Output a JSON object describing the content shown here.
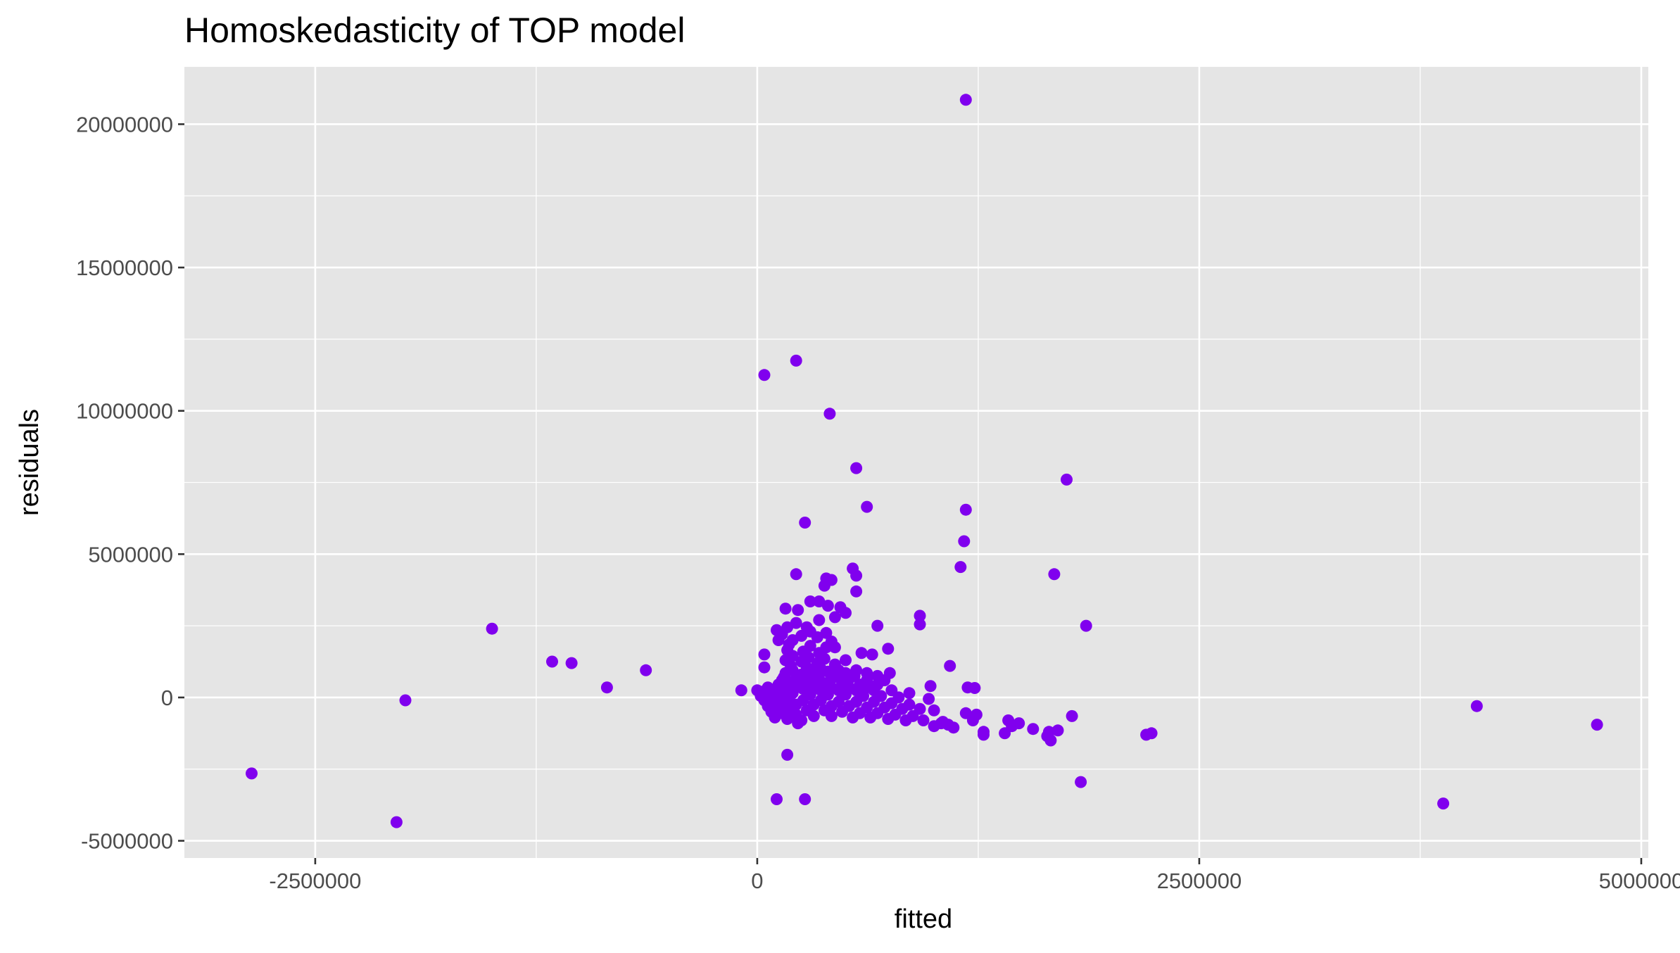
{
  "chart_data": {
    "type": "scatter",
    "title": "Homoskedasticity of TOP model",
    "xlabel": "fitted",
    "ylabel": "residuals",
    "xlim": [
      -3240000,
      5040000
    ],
    "ylim": [
      -5600000,
      22000000
    ],
    "x_ticks": [
      -2500000,
      0,
      2500000,
      5000000
    ],
    "x_tick_labels": [
      "-2500000",
      "0",
      "2500000",
      "5000000"
    ],
    "y_ticks": [
      -5000000,
      0,
      5000000,
      10000000,
      15000000,
      20000000
    ],
    "y_tick_labels": [
      "-5000000",
      "0",
      "5000000",
      "10000000",
      "15000000",
      "20000000"
    ],
    "grid": true,
    "legend": "none",
    "point_color": "#8000EE",
    "panel_background": "#E5E5E5",
    "series": [
      {
        "points": [
          [
            1180000,
            20850000
          ],
          [
            40000,
            11250000
          ],
          [
            220000,
            11750000
          ],
          [
            410000,
            9900000
          ],
          [
            560000,
            8000000
          ],
          [
            1750000,
            7600000
          ],
          [
            620000,
            6650000
          ],
          [
            1180000,
            6550000
          ],
          [
            270000,
            6100000
          ],
          [
            1170000,
            5450000
          ],
          [
            1150000,
            4550000
          ],
          [
            540000,
            4500000
          ],
          [
            1680000,
            4300000
          ],
          [
            220000,
            4300000
          ],
          [
            390000,
            4150000
          ],
          [
            560000,
            4250000
          ],
          [
            420000,
            4100000
          ],
          [
            380000,
            3900000
          ],
          [
            560000,
            3700000
          ],
          [
            350000,
            3350000
          ],
          [
            300000,
            3350000
          ],
          [
            400000,
            3200000
          ],
          [
            470000,
            3150000
          ],
          [
            160000,
            3100000
          ],
          [
            230000,
            3050000
          ],
          [
            500000,
            2950000
          ],
          [
            920000,
            2850000
          ],
          [
            440000,
            2800000
          ],
          [
            350000,
            2700000
          ],
          [
            220000,
            2600000
          ],
          [
            920000,
            2550000
          ],
          [
            680000,
            2500000
          ],
          [
            1860000,
            2500000
          ],
          [
            170000,
            2450000
          ],
          [
            280000,
            2450000
          ],
          [
            110000,
            2350000
          ],
          [
            300000,
            2300000
          ],
          [
            390000,
            2250000
          ],
          [
            140000,
            2200000
          ],
          [
            250000,
            2150000
          ],
          [
            340000,
            2100000
          ],
          [
            120000,
            2000000
          ],
          [
            200000,
            2000000
          ],
          [
            420000,
            1950000
          ],
          [
            180000,
            1850000
          ],
          [
            300000,
            1800000
          ],
          [
            390000,
            1750000
          ],
          [
            440000,
            1750000
          ],
          [
            740000,
            1700000
          ],
          [
            170000,
            1650000
          ],
          [
            260000,
            1600000
          ],
          [
            350000,
            1550000
          ],
          [
            590000,
            1550000
          ],
          [
            650000,
            1500000
          ],
          [
            40000,
            1500000
          ],
          [
            200000,
            1450000
          ],
          [
            290000,
            1400000
          ],
          [
            380000,
            1350000
          ],
          [
            500000,
            1300000
          ],
          [
            160000,
            1300000
          ],
          [
            250000,
            1250000
          ],
          [
            340000,
            1200000
          ],
          [
            440000,
            1150000
          ],
          [
            190000,
            1100000
          ],
          [
            1090000,
            1100000
          ],
          [
            40000,
            1050000
          ],
          [
            280000,
            1050000
          ],
          [
            360000,
            1000000
          ],
          [
            460000,
            950000
          ],
          [
            560000,
            950000
          ],
          [
            200000,
            950000
          ],
          [
            300000,
            900000
          ],
          [
            400000,
            900000
          ],
          [
            500000,
            850000
          ],
          [
            620000,
            850000
          ],
          [
            750000,
            850000
          ],
          [
            160000,
            850000
          ],
          [
            250000,
            800000
          ],
          [
            350000,
            800000
          ],
          [
            450000,
            750000
          ],
          [
            550000,
            750000
          ],
          [
            680000,
            750000
          ],
          [
            150000,
            700000
          ],
          [
            230000,
            700000
          ],
          [
            330000,
            650000
          ],
          [
            420000,
            650000
          ],
          [
            520000,
            650000
          ],
          [
            620000,
            600000
          ],
          [
            720000,
            600000
          ],
          [
            140000,
            600000
          ],
          [
            200000,
            550000
          ],
          [
            280000,
            550000
          ],
          [
            380000,
            500000
          ],
          [
            480000,
            500000
          ],
          [
            580000,
            450000
          ],
          [
            680000,
            450000
          ],
          [
            120000,
            450000
          ],
          [
            180000,
            400000
          ],
          [
            240000,
            400000
          ],
          [
            320000,
            400000
          ],
          [
            420000,
            350000
          ],
          [
            520000,
            350000
          ],
          [
            620000,
            350000
          ],
          [
            980000,
            400000
          ],
          [
            1190000,
            350000
          ],
          [
            1230000,
            330000
          ],
          [
            60000,
            350000
          ],
          [
            100000,
            300000
          ],
          [
            160000,
            300000
          ],
          [
            260000,
            300000
          ],
          [
            360000,
            250000
          ],
          [
            460000,
            250000
          ],
          [
            560000,
            250000
          ],
          [
            660000,
            250000
          ],
          [
            760000,
            250000
          ],
          [
            860000,
            150000
          ],
          [
            -90000,
            250000
          ],
          [
            0,
            250000
          ],
          [
            30000,
            200000
          ],
          [
            80000,
            200000
          ],
          [
            140000,
            150000
          ],
          [
            200000,
            150000
          ],
          [
            300000,
            100000
          ],
          [
            400000,
            100000
          ],
          [
            500000,
            100000
          ],
          [
            600000,
            50000
          ],
          [
            700000,
            50000
          ],
          [
            800000,
            0
          ],
          [
            20000,
            50000
          ],
          [
            70000,
            0
          ],
          [
            120000,
            -50000
          ],
          [
            180000,
            -50000
          ],
          [
            260000,
            -100000
          ],
          [
            360000,
            -100000
          ],
          [
            460000,
            -150000
          ],
          [
            560000,
            -150000
          ],
          [
            660000,
            -150000
          ],
          [
            760000,
            -200000
          ],
          [
            860000,
            -250000
          ],
          [
            970000,
            -50000
          ],
          [
            40000,
            -100000
          ],
          [
            90000,
            -150000
          ],
          [
            150000,
            -200000
          ],
          [
            220000,
            -250000
          ],
          [
            320000,
            -250000
          ],
          [
            420000,
            -300000
          ],
          [
            520000,
            -300000
          ],
          [
            620000,
            -350000
          ],
          [
            720000,
            -350000
          ],
          [
            820000,
            -400000
          ],
          [
            920000,
            -400000
          ],
          [
            1000000,
            -450000
          ],
          [
            60000,
            -300000
          ],
          [
            120000,
            -350000
          ],
          [
            190000,
            -400000
          ],
          [
            280000,
            -450000
          ],
          [
            380000,
            -450000
          ],
          [
            480000,
            -500000
          ],
          [
            580000,
            -550000
          ],
          [
            680000,
            -550000
          ],
          [
            780000,
            -600000
          ],
          [
            880000,
            -650000
          ],
          [
            1180000,
            -550000
          ],
          [
            1240000,
            -600000
          ],
          [
            80000,
            -500000
          ],
          [
            140000,
            -550000
          ],
          [
            220000,
            -600000
          ],
          [
            320000,
            -650000
          ],
          [
            420000,
            -650000
          ],
          [
            540000,
            -700000
          ],
          [
            640000,
            -700000
          ],
          [
            740000,
            -750000
          ],
          [
            840000,
            -800000
          ],
          [
            940000,
            -800000
          ],
          [
            1050000,
            -850000
          ],
          [
            1220000,
            -800000
          ],
          [
            100000,
            -700000
          ],
          [
            170000,
            -750000
          ],
          [
            250000,
            -800000
          ],
          [
            1080000,
            -950000
          ],
          [
            1000000,
            -1000000
          ],
          [
            1040000,
            -900000
          ],
          [
            1110000,
            -1050000
          ],
          [
            1280000,
            -1200000
          ],
          [
            1420000,
            -800000
          ],
          [
            1480000,
            -900000
          ],
          [
            1560000,
            -1100000
          ],
          [
            1640000,
            -1350000
          ],
          [
            1700000,
            -1150000
          ],
          [
            1660000,
            -1500000
          ],
          [
            1780000,
            -650000
          ],
          [
            1400000,
            -1250000
          ],
          [
            1280000,
            -1300000
          ],
          [
            1650000,
            -1200000
          ],
          [
            1440000,
            -1000000
          ],
          [
            230000,
            -900000
          ],
          [
            170000,
            -2000000
          ],
          [
            2200000,
            -1300000
          ],
          [
            2230000,
            -1250000
          ],
          [
            1830000,
            -2950000
          ],
          [
            110000,
            -3550000
          ],
          [
            270000,
            -3550000
          ],
          [
            -1500000,
            2400000
          ],
          [
            -1160000,
            1250000
          ],
          [
            -1050000,
            1200000
          ],
          [
            -850000,
            350000
          ],
          [
            -630000,
            950000
          ],
          [
            -1990000,
            -100000
          ],
          [
            -2860000,
            -2650000
          ],
          [
            -2040000,
            -4350000
          ],
          [
            4070000,
            -300000
          ],
          [
            4750000,
            -950000
          ],
          [
            3880000,
            -3700000
          ]
        ]
      }
    ]
  }
}
